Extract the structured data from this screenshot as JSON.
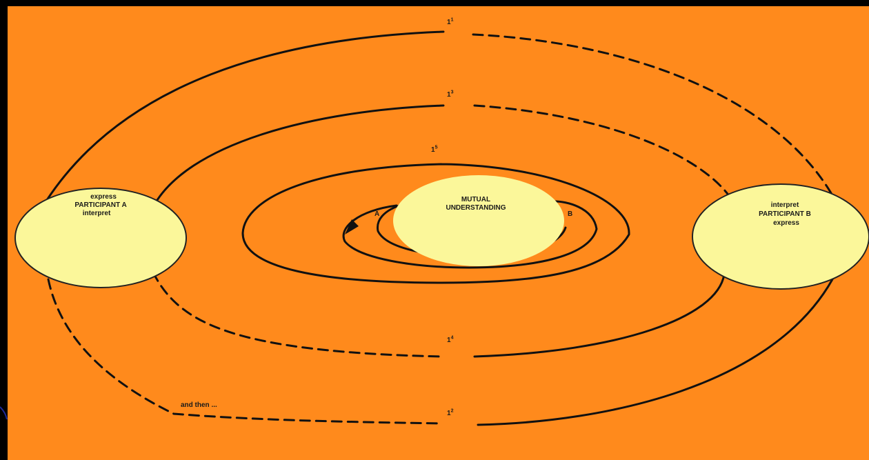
{
  "colors": {
    "background": "#000000",
    "slide": "#ff8a1c",
    "ellipse_fill": "#fbf79a",
    "line": "#111111"
  },
  "participant_a": {
    "line1": "express",
    "line2": "PARTICIPANT A",
    "line3": "interpret"
  },
  "participant_b": {
    "line1": "interpret",
    "line2": "PARTICIPANT B",
    "line3": "express"
  },
  "center": {
    "line1": "MUTUAL",
    "line2": "UNDERSTANDING"
  },
  "spiral_labels": [
    {
      "base": "1",
      "sup": "1"
    },
    {
      "base": "1",
      "sup": "3"
    },
    {
      "base": "1",
      "sup": "5"
    },
    {
      "base": "1",
      "sup": "4"
    },
    {
      "base": "1",
      "sup": "2"
    }
  ],
  "markers": {
    "a": "A",
    "b": "B"
  },
  "footer_note": "and then ..."
}
